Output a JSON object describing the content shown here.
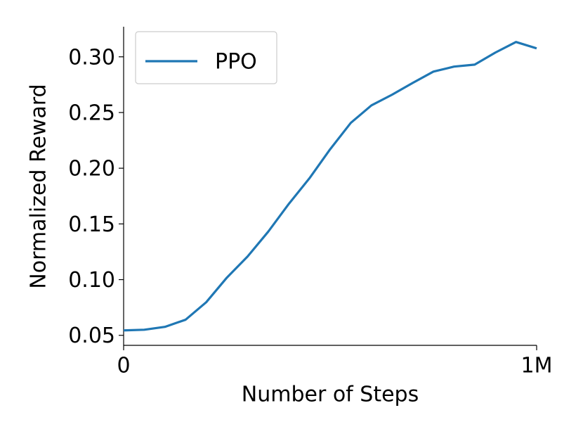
{
  "chart_data": {
    "type": "line",
    "x_label": "Number of Steps",
    "y_label": "Normalized Reward",
    "x": [
      0,
      50000,
      100000,
      150000,
      200000,
      250000,
      300000,
      350000,
      400000,
      450000,
      500000,
      550000,
      600000,
      650000,
      700000,
      750000,
      800000,
      850000,
      900000,
      950000,
      1000000
    ],
    "series": [
      {
        "name": "PPO",
        "color": "#1f77b4",
        "values": [
          0.0544,
          0.055,
          0.0576,
          0.064,
          0.0797,
          0.1018,
          0.1207,
          0.143,
          0.168,
          0.191,
          0.217,
          0.2407,
          0.2564,
          0.266,
          0.2766,
          0.2867,
          0.2912,
          0.293,
          0.3038,
          0.3133,
          0.3076
        ]
      }
    ],
    "xlim": [
      0,
      1000000
    ],
    "xticks": [
      0,
      {
        "value": 1000000,
        "label": "1M"
      }
    ],
    "ylim": [
      0.041,
      0.327
    ],
    "yticks": [
      0.05,
      0.1,
      0.15,
      0.2,
      0.25,
      0.3
    ],
    "ytick_labels": [
      "0.05",
      "0.10",
      "0.15",
      "0.20",
      "0.25",
      "0.30"
    ],
    "legend": "upper left",
    "grid": false
  }
}
